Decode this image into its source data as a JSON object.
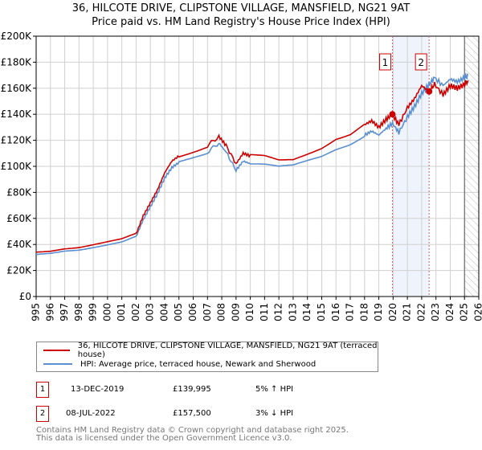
{
  "chart_data": {
    "type": "line",
    "title": "36, HILCOTE DRIVE, CLIPSTONE VILLAGE, MANSFIELD, NG21 9AT",
    "subtitle": "Price paid vs. HM Land Registry's House Price Index (HPI)",
    "xlim": [
      1995,
      2026
    ],
    "ylim": [
      0,
      200000
    ],
    "x_ticks": [
      "1995",
      "1996",
      "1997",
      "1998",
      "1999",
      "2000",
      "2001",
      "2002",
      "2003",
      "2004",
      "2005",
      "2006",
      "2007",
      "2008",
      "2009",
      "2010",
      "2011",
      "2012",
      "2013",
      "2014",
      "2015",
      "2016",
      "2017",
      "2018",
      "2019",
      "2020",
      "2021",
      "2022",
      "2023",
      "2024",
      "2025",
      "2026"
    ],
    "y_ticks": [
      {
        "v": 0,
        "label": "£0"
      },
      {
        "v": 20000,
        "label": "£20K"
      },
      {
        "v": 40000,
        "label": "£40K"
      },
      {
        "v": 60000,
        "label": "£60K"
      },
      {
        "v": 80000,
        "label": "£80K"
      },
      {
        "v": 100000,
        "label": "£100K"
      },
      {
        "v": 120000,
        "label": "£120K"
      },
      {
        "v": 140000,
        "label": "£140K"
      },
      {
        "v": 160000,
        "label": "£160K"
      },
      {
        "v": 180000,
        "label": "£180K"
      },
      {
        "v": 200000,
        "label": "£200K"
      }
    ],
    "grid": true,
    "series": [
      {
        "name": "36, HILCOTE DRIVE, CLIPSTONE VILLAGE, MANSFIELD, NG21 9AT (terraced house)",
        "color": "#cc0000",
        "x": [
          1995,
          1996,
          1997,
          1998,
          1999,
          2000,
          2001,
          2002,
          2002.5,
          2003,
          2003.5,
          2004,
          2004.5,
          2005,
          2006,
          2007,
          2007.8,
          2008.3,
          2009,
          2009.5,
          2010,
          2011,
          2012,
          2013,
          2014,
          2015,
          2016,
          2017,
          2018,
          2018.5,
          2019,
          2019.5,
          2019.95,
          2020.4,
          2021,
          2021.5,
          2022,
          2022.52,
          2022.9,
          2023.5,
          2024,
          2024.5,
          2025,
          2025.25
        ],
        "y": [
          34000,
          35000,
          37000,
          38000,
          40000,
          42000,
          44000,
          48000,
          62000,
          72000,
          82000,
          95000,
          104000,
          108000,
          112000,
          116000,
          123000,
          116000,
          102000,
          110000,
          108000,
          107000,
          104000,
          105000,
          110000,
          115000,
          122000,
          125000,
          132000,
          135000,
          130000,
          136000,
          139995,
          132000,
          145000,
          152000,
          162000,
          157500,
          163000,
          155000,
          162000,
          160000,
          163000,
          166000
        ]
      },
      {
        "name": "HPI: Average price, terraced house, Newark and Sherwood",
        "color": "#5b8fd0",
        "x": [
          1995,
          1996,
          1997,
          1998,
          1999,
          2000,
          2001,
          2002,
          2002.5,
          2003,
          2003.5,
          2004,
          2004.5,
          2005,
          2006,
          2007,
          2007.8,
          2008.3,
          2009,
          2009.5,
          2010,
          2011,
          2012,
          2013,
          2014,
          2015,
          2016,
          2017,
          2018,
          2018.5,
          2019,
          2019.5,
          2019.95,
          2020.4,
          2021,
          2021.5,
          2022,
          2022.52,
          2022.9,
          2023.5,
          2024,
          2024.5,
          2025,
          2025.25
        ],
        "y": [
          32000,
          33000,
          35000,
          36000,
          38000,
          40000,
          42000,
          46000,
          59000,
          69000,
          79000,
          91000,
          99000,
          103000,
          107000,
          111000,
          118000,
          111000,
          97000,
          104000,
          102000,
          101000,
          99000,
          100000,
          104000,
          108000,
          114000,
          118000,
          124000,
          127000,
          124000,
          129000,
          133000,
          126000,
          138000,
          146000,
          156000,
          163000,
          168000,
          162000,
          167000,
          165000,
          168000,
          170000
        ]
      }
    ],
    "sales": [
      {
        "n": "1",
        "date": "13-DEC-2019",
        "x": 2019.95,
        "price": "£139,995",
        "value": 139995,
        "hpi": "5% ↑ HPI"
      },
      {
        "n": "2",
        "date": "08-JUL-2022",
        "x": 2022.52,
        "price": "£157,500",
        "value": 157500,
        "hpi": "3% ↓ HPI"
      }
    ],
    "hatch_from": 2025.0
  },
  "footer": {
    "line1": "Contains HM Land Registry data © Crown copyright and database right 2025.",
    "line2": "This data is licensed under the Open Government Licence v3.0."
  }
}
